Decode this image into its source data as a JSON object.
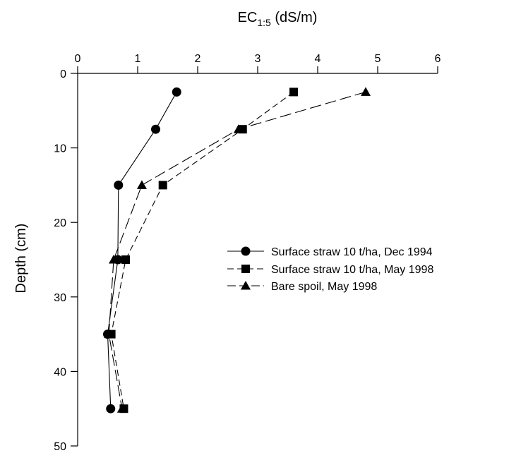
{
  "chart_data": {
    "type": "line",
    "x_axis": {
      "label_main": "EC",
      "label_subscript": "1:5",
      "label_unit": " (dS/m)",
      "position": "top",
      "range": [
        0,
        6
      ],
      "ticks": [
        0,
        1,
        2,
        3,
        4,
        5,
        6
      ]
    },
    "y_axis": {
      "label": "Depth (cm)",
      "range": [
        0,
        50
      ],
      "inverted": true,
      "ticks": [
        0,
        10,
        20,
        30,
        40,
        50
      ]
    },
    "grid": false,
    "legend_position": "center-right",
    "series": [
      {
        "name": "Surface straw 10 t/ha, Dec 1994",
        "marker": "circle",
        "line_style": "solid",
        "color": "#000000",
        "points": [
          {
            "ec": 1.65,
            "depth": 2.5
          },
          {
            "ec": 1.3,
            "depth": 7.5
          },
          {
            "ec": 0.68,
            "depth": 15
          },
          {
            "ec": 0.67,
            "depth": 25
          },
          {
            "ec": 0.5,
            "depth": 35
          },
          {
            "ec": 0.55,
            "depth": 45
          }
        ]
      },
      {
        "name": "Surface straw 10 t/ha, May 1998",
        "marker": "square",
        "line_style": "dashed",
        "color": "#000000",
        "points": [
          {
            "ec": 3.6,
            "depth": 2.5
          },
          {
            "ec": 2.75,
            "depth": 7.5
          },
          {
            "ec": 1.42,
            "depth": 15
          },
          {
            "ec": 0.8,
            "depth": 25
          },
          {
            "ec": 0.56,
            "depth": 35
          },
          {
            "ec": 0.77,
            "depth": 45
          }
        ]
      },
      {
        "name": "Bare spoil, May 1998",
        "marker": "triangle",
        "line_style": "long-dash",
        "color": "#000000",
        "points": [
          {
            "ec": 4.8,
            "depth": 2.5
          },
          {
            "ec": 2.68,
            "depth": 7.5
          },
          {
            "ec": 1.07,
            "depth": 15
          },
          {
            "ec": 0.6,
            "depth": 25
          },
          {
            "ec": 0.52,
            "depth": 35
          },
          {
            "ec": 0.74,
            "depth": 45
          }
        ]
      }
    ]
  }
}
